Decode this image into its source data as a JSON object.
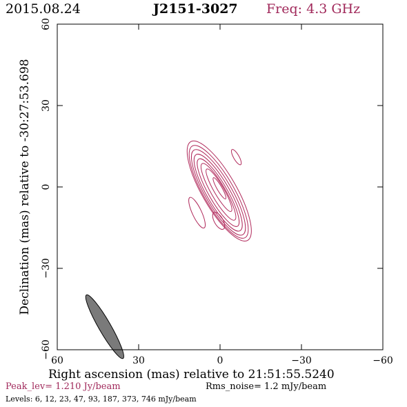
{
  "header": {
    "date": "2015.08.24",
    "source": "J2151-3027",
    "frequency": "Freq: 4.3 GHz"
  },
  "colors": {
    "contour": "#b0285a",
    "freq_text": "#a0285a",
    "peak_text": "#a0285a",
    "beam_fill": "#7a7a7a"
  },
  "footer": {
    "xlabel": "Right ascension (mas) relative to 21:51:55.5240",
    "peak": "Peak_lev=  1.210 Jy/beam",
    "rms": "Rms_noise=   1.2 mJy/beam",
    "levels": "Levels:   6,  12,  23,  47,  93, 187, 373, 746 mJy/beam"
  },
  "chart_data": {
    "type": "contour",
    "title": "J2151-3027",
    "xlabel": "Right ascension (mas) relative to 21:51:55.5240",
    "ylabel": "Declination (mas) relative to -30:27:53.698",
    "xlim": [
      60,
      -60
    ],
    "ylim": [
      -60,
      60
    ],
    "x_ticks": [
      60,
      30,
      0,
      -30,
      -60
    ],
    "y_ticks": [
      -60,
      -30,
      0,
      30,
      60
    ],
    "x_tick_labels": [
      "60",
      "30",
      "0",
      "−30",
      "−60"
    ],
    "y_tick_labels": [
      "−60",
      "−30",
      "0",
      "30",
      "60"
    ],
    "contour_levels_mJy": [
      6,
      12,
      23,
      47,
      93,
      187,
      373,
      746
    ],
    "core_contours": [
      {
        "level": 6,
        "cx": 0.3,
        "cy": -1.5,
        "a": 21.0,
        "b": 6.3,
        "pa": 30
      },
      {
        "level": 12,
        "cx": 0.5,
        "cy": -1.8,
        "a": 19.5,
        "b": 5.6,
        "pa": 30
      },
      {
        "level": 23,
        "cx": 0.6,
        "cy": -2.0,
        "a": 18.0,
        "b": 4.9,
        "pa": 30
      },
      {
        "level": 47,
        "cx": 0.7,
        "cy": -2.1,
        "a": 16.2,
        "b": 4.2,
        "pa": 30
      },
      {
        "level": 93,
        "cx": 0.7,
        "cy": -2.1,
        "a": 14.3,
        "b": 3.4,
        "pa": 30
      },
      {
        "level": 187,
        "cx": 0.6,
        "cy": -1.8,
        "a": 12.0,
        "b": 2.6,
        "pa": 30
      },
      {
        "level": 373,
        "cx": 0.4,
        "cy": -1.2,
        "a": 9.0,
        "b": 1.8,
        "pa": 30
      },
      {
        "level": 746,
        "cx": 0.2,
        "cy": -0.5,
        "a": 4.5,
        "b": 0.9,
        "pa": 30
      }
    ],
    "side_components": [
      {
        "cx": -6.0,
        "cy": 11.0,
        "a": 3.2,
        "b": 1.0,
        "pa": 30
      },
      {
        "cx": 8.5,
        "cy": -9.5,
        "a": 6.2,
        "b": 1.7,
        "pa": 25
      },
      {
        "cx": 0.5,
        "cy": -12.5,
        "a": 3.5,
        "b": 1.6,
        "pa": 30
      }
    ],
    "beam": {
      "cx": 42.5,
      "cy": -51.5,
      "major_mas": 13.5,
      "minor_mas": 2.2,
      "pa": 30
    }
  }
}
